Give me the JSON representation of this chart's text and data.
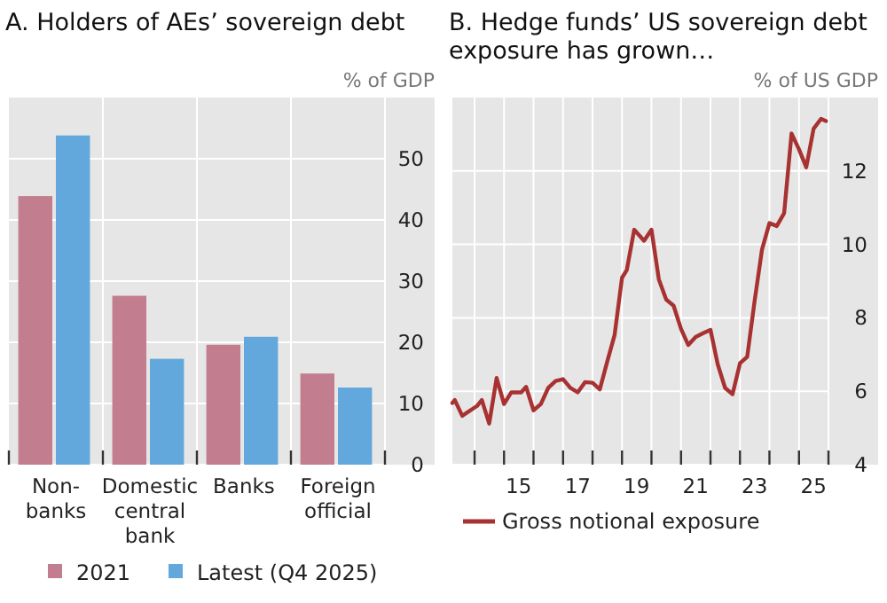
{
  "chart_data": [
    {
      "type": "bar",
      "title": "A. Holders of AEs’ sovereign debt",
      "ylabel": "% of GDP",
      "categories": [
        "Non-banks",
        "Domestic central bank",
        "Banks",
        "Foreign official"
      ],
      "series": [
        {
          "name": "2021",
          "color": "#c27d8e",
          "values": [
            43.9,
            27.6,
            19.6,
            14.9
          ]
        },
        {
          "name": "Latest (Q4 2025)",
          "color": "#62a8dc",
          "values": [
            53.8,
            17.3,
            20.9,
            12.6
          ]
        }
      ],
      "ylim": [
        0,
        60
      ],
      "yticks": [
        0,
        10,
        20,
        30,
        40,
        50
      ],
      "grid": true,
      "legend": "bottom"
    },
    {
      "type": "line",
      "title": "B. Hedge funds’ US sovereign debt exposure has grown…",
      "ylabel": "% of US GDP",
      "series": [
        {
          "name": "Gross notional exposure",
          "color": "#a83232",
          "x": [
            "2013-04",
            "2013-05",
            "2013-08",
            "2014-02",
            "2014-04",
            "2014-07",
            "2014-10",
            "2015-01",
            "2015-04",
            "2015-08",
            "2015-10",
            "2016-01",
            "2016-04",
            "2016-07",
            "2016-10",
            "2017-01",
            "2017-04",
            "2017-07",
            "2017-10",
            "2018-01",
            "2018-04",
            "2018-07",
            "2018-10",
            "2019-01",
            "2019-03",
            "2019-06",
            "2019-10",
            "2020-01",
            "2020-04",
            "2020-07",
            "2020-10",
            "2021-01",
            "2021-04",
            "2021-07",
            "2021-10",
            "2022-01",
            "2022-04",
            "2022-07",
            "2022-10",
            "2023-01",
            "2023-04",
            "2023-07",
            "2023-10",
            "2024-01",
            "2024-04",
            "2024-07",
            "2024-10",
            "2025-01",
            "2025-04",
            "2025-07",
            "2025-10",
            "2025-12"
          ],
          "values": [
            5.68,
            5.76,
            5.33,
            5.6,
            5.76,
            5.12,
            6.36,
            5.65,
            5.97,
            5.97,
            6.12,
            5.48,
            5.65,
            6.09,
            6.28,
            6.33,
            6.09,
            5.97,
            6.25,
            6.23,
            6.05,
            6.8,
            7.53,
            9.09,
            9.3,
            10.4,
            10.1,
            10.4,
            9.05,
            8.5,
            8.33,
            7.7,
            7.26,
            7.48,
            7.58,
            7.67,
            6.73,
            6.09,
            5.92,
            6.76,
            6.94,
            8.45,
            9.86,
            10.58,
            10.5,
            10.85,
            13.02,
            12.59,
            12.1,
            13.15,
            13.42,
            13.36
          ]
        }
      ],
      "xlim": [
        "2013-04",
        "2026-01"
      ],
      "xticks": [
        {
          "value": "2014",
          "label": null
        },
        {
          "value": "2015",
          "label": null
        },
        {
          "value": "2016",
          "label": null
        },
        {
          "value": "2017",
          "label": null
        },
        {
          "value": "2018",
          "label": null
        },
        {
          "value": "2019",
          "label": null
        },
        {
          "value": "2020",
          "label": null
        },
        {
          "value": "2021",
          "label": null
        },
        {
          "value": "2022",
          "label": null
        },
        {
          "value": "2023",
          "label": null
        },
        {
          "value": "2024",
          "label": null
        },
        {
          "value": "2025",
          "label": null
        },
        {
          "value": "2026",
          "label": null
        },
        {
          "value": "2015-07",
          "label": "15"
        },
        {
          "value": "2017-07",
          "label": "17"
        },
        {
          "value": "2019-07",
          "label": "19"
        },
        {
          "value": "2021-07",
          "label": "21"
        },
        {
          "value": "2023-07",
          "label": "23"
        },
        {
          "value": "2025-07",
          "label": "25"
        }
      ],
      "ylim": [
        4,
        14
      ],
      "yticks": [
        4,
        6,
        8,
        10,
        12
      ],
      "grid": true,
      "legend": "bottom left"
    }
  ]
}
